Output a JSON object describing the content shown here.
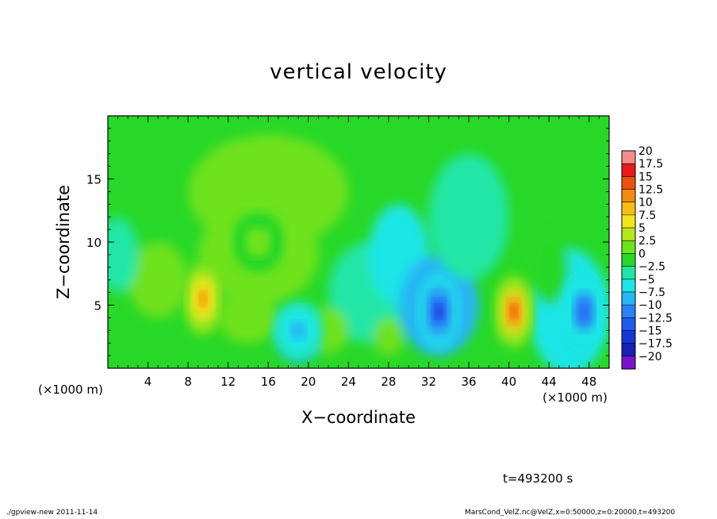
{
  "chart_data": {
    "type": "heatmap",
    "title": "vertical velocity",
    "xlabel": "X−coordinate",
    "ylabel": "Z−coordinate",
    "x_unit": "(×1000 m)",
    "x_range": [
      0,
      50
    ],
    "z_range": [
      0,
      20
    ],
    "xticks": [
      4,
      8,
      12,
      16,
      20,
      24,
      28,
      32,
      36,
      40,
      44,
      48
    ],
    "yticks": [
      5,
      10,
      15
    ],
    "colorbar": {
      "levels": [
        -20,
        -17.5,
        -15,
        -12.5,
        -10,
        -7.5,
        -5,
        -2.5,
        0,
        2.5,
        5,
        7.5,
        10,
        12.5,
        15,
        17.5,
        20
      ],
      "labels": [
        "20",
        "17.5",
        "15",
        "12.5",
        "10",
        "7.5",
        "5",
        "2.5",
        "0",
        "−2.5",
        "−5",
        "−7.5",
        "−10",
        "−12.5",
        "−15",
        "−17.5",
        "−20"
      ],
      "colors": [
        "#7a14c8",
        "#1a20b0",
        "#1438d8",
        "#1e5cf0",
        "#2a82f6",
        "#28b6f4",
        "#1ee6e6",
        "#20e6a6",
        "#28d828",
        "#6ee21e",
        "#b8e61e",
        "#f2e61e",
        "#f6be14",
        "#f48a0e",
        "#ee500c",
        "#e61a1a",
        "#f48a8a"
      ]
    },
    "features": [
      {
        "kind": "updraft",
        "x": 9.5,
        "z": 5.5,
        "peak": 13
      },
      {
        "kind": "updraft",
        "x": 40.5,
        "z": 4.5,
        "peak": 15
      },
      {
        "kind": "downdraft",
        "x": 33,
        "z": 4.5,
        "peak": -13
      },
      {
        "kind": "downdraft",
        "x": 47.5,
        "z": 4.5,
        "peak": -11
      },
      {
        "kind": "weak updraft",
        "x": 15,
        "z": 10,
        "peak": 4
      },
      {
        "kind": "weak downdraft",
        "x": 19,
        "z": 3,
        "peak": -6
      }
    ]
  },
  "time_label": "t=493200 s",
  "footer": {
    "left": "./gpview-new  2011-11-14",
    "right": "MarsCond_VelZ.nc@VelZ,x=0:50000,z=0:20000,t=493200"
  }
}
